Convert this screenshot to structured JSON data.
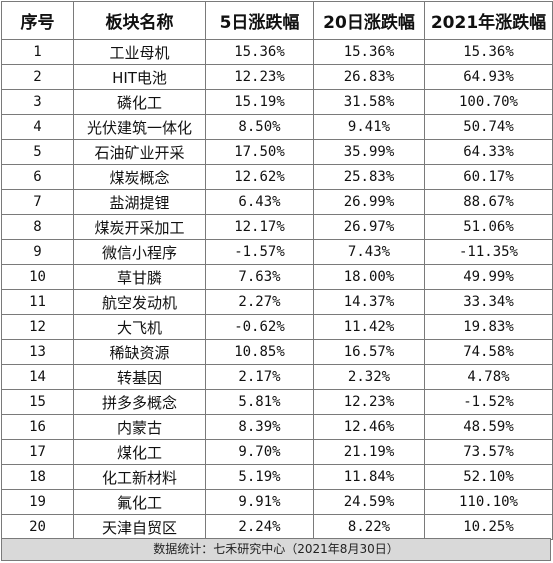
{
  "table": {
    "headers": [
      "序号",
      "板块名称",
      "5日涨跌幅",
      "20日涨跌幅",
      "2021年涨跌幅"
    ],
    "rows": [
      [
        "1",
        "工业母机",
        "15.36%",
        "15.36%",
        "15.36%"
      ],
      [
        "2",
        "HIT电池",
        "12.23%",
        "26.83%",
        "64.93%"
      ],
      [
        "3",
        "磷化工",
        "15.19%",
        "31.58%",
        "100.70%"
      ],
      [
        "4",
        "光伏建筑一体化",
        "8.50%",
        "9.41%",
        "50.74%"
      ],
      [
        "5",
        "石油矿业开采",
        "17.50%",
        "35.99%",
        "64.33%"
      ],
      [
        "6",
        "煤炭概念",
        "12.62%",
        "25.83%",
        "60.17%"
      ],
      [
        "7",
        "盐湖提锂",
        "6.43%",
        "26.99%",
        "88.67%"
      ],
      [
        "8",
        "煤炭开采加工",
        "12.17%",
        "26.97%",
        "51.06%"
      ],
      [
        "9",
        "微信小程序",
        "-1.57%",
        "7.43%",
        "-11.35%"
      ],
      [
        "10",
        "草甘膦",
        "7.63%",
        "18.00%",
        "49.99%"
      ],
      [
        "11",
        "航空发动机",
        "2.27%",
        "14.37%",
        "33.34%"
      ],
      [
        "12",
        "大飞机",
        "-0.62%",
        "11.42%",
        "19.83%"
      ],
      [
        "13",
        "稀缺资源",
        "10.85%",
        "16.57%",
        "74.58%"
      ],
      [
        "14",
        "转基因",
        "2.17%",
        "2.32%",
        "4.78%"
      ],
      [
        "15",
        "拼多多概念",
        "5.81%",
        "12.23%",
        "-1.52%"
      ],
      [
        "16",
        "内蒙古",
        "8.39%",
        "12.46%",
        "48.59%"
      ],
      [
        "17",
        "煤化工",
        "9.70%",
        "21.19%",
        "73.57%"
      ],
      [
        "18",
        "化工新材料",
        "5.19%",
        "11.84%",
        "52.10%"
      ],
      [
        "19",
        "氟化工",
        "9.91%",
        "24.59%",
        "110.10%"
      ],
      [
        "20",
        "天津自贸区",
        "2.24%",
        "8.22%",
        "10.25%"
      ]
    ]
  },
  "footer": {
    "source": "数据统计：七禾研究中心（2021年8月30日）"
  }
}
